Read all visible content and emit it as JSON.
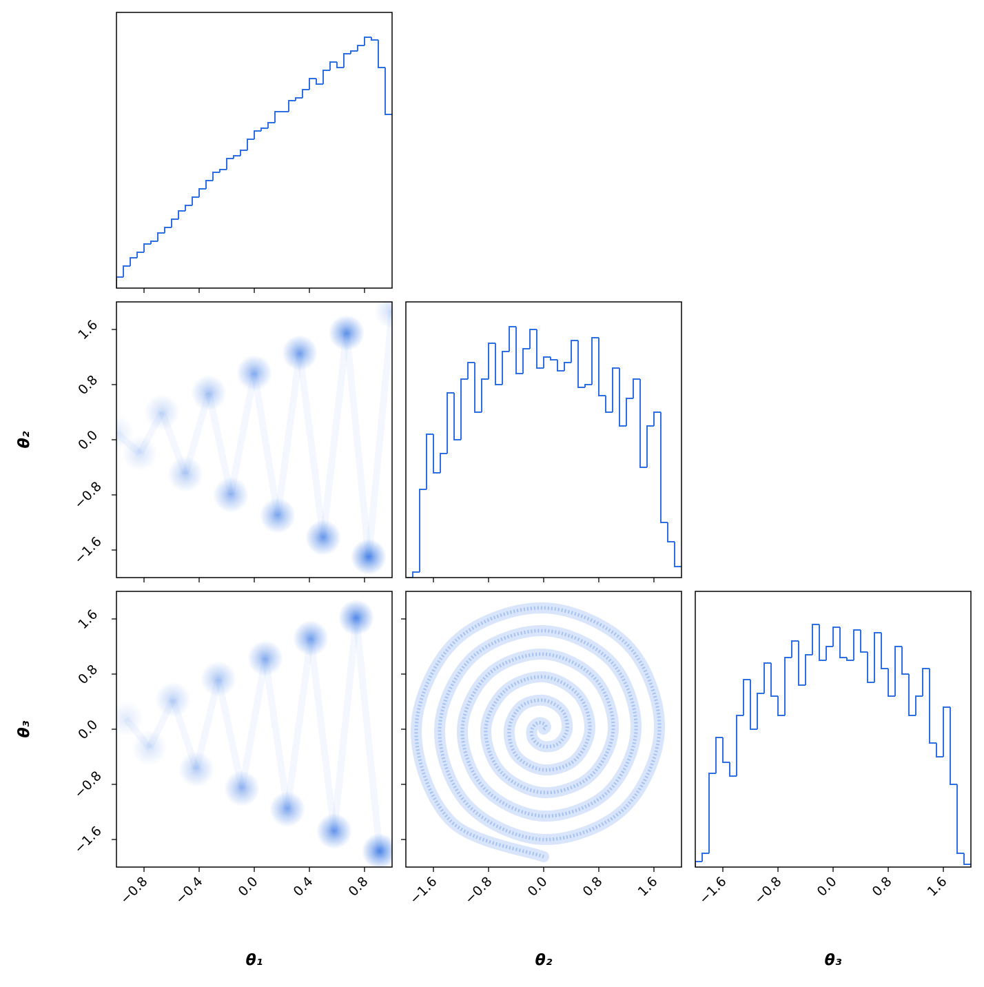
{
  "chart_data": [
    {
      "type": "histogram",
      "color": "#2d6fe3",
      "bins": [
        -1.0,
        -0.95,
        -0.9,
        -0.85,
        -0.8,
        -0.75,
        -0.7,
        -0.65,
        -0.6,
        -0.55,
        -0.5,
        -0.45,
        -0.4,
        -0.35,
        -0.3,
        -0.25,
        -0.2,
        -0.15,
        -0.1,
        -0.05,
        0.0,
        0.05,
        0.1,
        0.15,
        0.2,
        0.25,
        0.3,
        0.35,
        0.4,
        0.45,
        0.5,
        0.55,
        0.6,
        0.65,
        0.7,
        0.75,
        0.8,
        0.85,
        0.9,
        0.95,
        1.0
      ],
      "values": [
        0.04,
        0.08,
        0.11,
        0.13,
        0.16,
        0.17,
        0.2,
        0.22,
        0.25,
        0.28,
        0.3,
        0.33,
        0.36,
        0.39,
        0.42,
        0.43,
        0.47,
        0.48,
        0.5,
        0.54,
        0.57,
        0.58,
        0.6,
        0.64,
        0.64,
        0.68,
        0.69,
        0.72,
        0.76,
        0.74,
        0.79,
        0.82,
        0.8,
        0.85,
        0.86,
        0.88,
        0.91,
        0.9,
        0.8,
        0.63
      ],
      "xlim": [
        -1,
        1
      ],
      "xticks": [
        -0.8,
        -0.4,
        0,
        0.4,
        0.8
      ],
      "ylim": [
        0,
        1
      ]
    },
    {
      "type": "density",
      "color": "#2d6fe3",
      "x": [
        -1.0,
        -0.83,
        -0.67,
        -0.5,
        -0.33,
        -0.17,
        0.0,
        0.17,
        0.33,
        0.5,
        0.67,
        0.83,
        1.0
      ],
      "y": [
        0.1,
        -0.2,
        0.4,
        -0.5,
        0.68,
        -0.8,
        0.97,
        -1.1,
        1.26,
        -1.42,
        1.55,
        -1.7,
        1.87
      ],
      "values": [
        0.15,
        0.2,
        0.25,
        0.35,
        0.4,
        0.5,
        0.55,
        0.6,
        0.65,
        0.7,
        0.75,
        0.85,
        0.25
      ],
      "xlim": [
        -1,
        1
      ],
      "xticks": [
        -0.8,
        -0.4,
        0,
        0.4,
        0.8
      ],
      "ylim": [
        -2,
        2
      ],
      "yticks": [
        {
          "value": -1.6,
          "label": "−1.6"
        },
        {
          "value": -0.8,
          "label": "−0.8"
        },
        {
          "value": 0,
          "label": "0.0"
        },
        0.8,
        1.6
      ],
      "ylabel": "θ₂"
    },
    {
      "type": "histogram",
      "color": "#2d6fe3",
      "bins": [
        -2.0,
        -1.9,
        -1.8,
        -1.7,
        -1.6,
        -1.5,
        -1.4,
        -1.3,
        -1.2,
        -1.1,
        -1.0,
        -0.9,
        -0.8,
        -0.7,
        -0.6,
        -0.5,
        -0.4,
        -0.3,
        -0.2,
        -0.1,
        0.0,
        0.1,
        0.2,
        0.3,
        0.4,
        0.5,
        0.6,
        0.7,
        0.8,
        0.9,
        1.0,
        1.1,
        1.2,
        1.3,
        1.4,
        1.5,
        1.6,
        1.7,
        1.8,
        1.9,
        2.0
      ],
      "values": [
        0.0,
        0.02,
        0.32,
        0.52,
        0.38,
        0.45,
        0.67,
        0.5,
        0.72,
        0.78,
        0.6,
        0.72,
        0.85,
        0.7,
        0.82,
        0.91,
        0.74,
        0.83,
        0.9,
        0.76,
        0.8,
        0.79,
        0.75,
        0.78,
        0.86,
        0.69,
        0.7,
        0.87,
        0.66,
        0.6,
        0.76,
        0.55,
        0.65,
        0.72,
        0.4,
        0.55,
        0.6,
        0.2,
        0.13,
        0.04
      ],
      "xlim": [
        -2,
        2
      ],
      "xticks": [
        -1.6,
        -0.8,
        0,
        0.8,
        1.6
      ],
      "ylim": [
        0,
        1
      ]
    },
    {
      "type": "density",
      "color": "#2d6fe3",
      "x": [
        -0.93,
        -0.76,
        -0.59,
        -0.42,
        -0.26,
        -0.09,
        0.08,
        0.24,
        0.41,
        0.58,
        0.74,
        0.91
      ],
      "y": [
        0.15,
        -0.27,
        0.43,
        -0.58,
        0.73,
        -0.86,
        1.03,
        -1.16,
        1.32,
        -1.48,
        1.62,
        -1.77
      ],
      "values": [
        0.15,
        0.2,
        0.3,
        0.35,
        0.4,
        0.5,
        0.55,
        0.6,
        0.65,
        0.72,
        0.8,
        0.85
      ],
      "xlim": [
        -1,
        1
      ],
      "xticks": [
        {
          "value": -0.8,
          "label": "−0.8"
        },
        {
          "value": -0.4,
          "label": "−0.4"
        },
        {
          "value": 0,
          "label": "0.0"
        },
        0.4,
        0.8
      ],
      "ylim": [
        -2,
        2
      ],
      "yticks": [
        {
          "value": -1.6,
          "label": "−1.6"
        },
        {
          "value": -0.8,
          "label": "−0.8"
        },
        {
          "value": 0,
          "label": "0.0"
        },
        0.8,
        1.6
      ],
      "xlabel": "θ₁",
      "ylabel": "θ₃"
    },
    {
      "type": "curve",
      "color": "#2d6fe3",
      "x": [
        0,
        0.03,
        0,
        -0.09,
        -0.17,
        -0.15,
        0,
        0.21,
        0.34,
        0.27,
        0,
        -0.33,
        -0.5,
        -0.39,
        0,
        0.45,
        0.67,
        0.5,
        0,
        -0.56,
        -0.84,
        -0.62,
        0,
        0.68,
        1.01,
        0.74,
        0,
        -0.8,
        -1.18,
        -0.86,
        0,
        0.92,
        1.34,
        0.98,
        0,
        -1.04,
        -1.51,
        -1.1,
        0,
        1.16,
        1.68,
        1.22,
        0,
        -1.28,
        -1.85,
        -1.34,
        0
      ],
      "y": [
        0,
        0.03,
        0.08,
        0.09,
        0,
        -0.15,
        -0.25,
        -0.21,
        0,
        0.27,
        0.42,
        0.33,
        0,
        -0.39,
        -0.59,
        -0.45,
        0,
        0.5,
        0.76,
        0.56,
        0,
        -0.62,
        -0.92,
        -0.68,
        0,
        0.74,
        1.09,
        0.8,
        0,
        -0.86,
        -1.26,
        -0.92,
        0,
        0.98,
        1.43,
        1.04,
        0,
        -1.1,
        -1.6,
        -1.16,
        0,
        1.22,
        1.76,
        1.28,
        0,
        -1.34,
        -1.85
      ],
      "xlim": [
        -2,
        2
      ],
      "xticks": [
        {
          "value": -1.6,
          "label": "−1.6"
        },
        {
          "value": -0.8,
          "label": "−0.8"
        },
        {
          "value": 0,
          "label": "0.0"
        },
        0.8,
        1.6
      ],
      "ylim": [
        -2,
        2
      ],
      "yticks": [
        -1.6,
        -0.8,
        0,
        0.8,
        1.6
      ],
      "xlabel": "θ₂"
    },
    {
      "type": "histogram",
      "color": "#2d6fe3",
      "bins": [
        -2.0,
        -1.9,
        -1.8,
        -1.7,
        -1.6,
        -1.5,
        -1.4,
        -1.3,
        -1.2,
        -1.1,
        -1.0,
        -0.9,
        -0.8,
        -0.7,
        -0.6,
        -0.5,
        -0.4,
        -0.3,
        -0.2,
        -0.1,
        0.0,
        0.1,
        0.2,
        0.3,
        0.4,
        0.5,
        0.6,
        0.7,
        0.8,
        0.9,
        1.0,
        1.1,
        1.2,
        1.3,
        1.4,
        1.5,
        1.6,
        1.7,
        1.8,
        1.9,
        2.0
      ],
      "values": [
        0.02,
        0.05,
        0.34,
        0.47,
        0.38,
        0.33,
        0.55,
        0.68,
        0.5,
        0.63,
        0.74,
        0.62,
        0.55,
        0.76,
        0.82,
        0.66,
        0.77,
        0.88,
        0.75,
        0.8,
        0.87,
        0.76,
        0.75,
        0.86,
        0.78,
        0.67,
        0.85,
        0.72,
        0.62,
        0.8,
        0.7,
        0.55,
        0.62,
        0.72,
        0.45,
        0.4,
        0.58,
        0.3,
        0.05,
        0.01
      ],
      "xlim": [
        -2,
        2
      ],
      "xticks": [
        {
          "value": -1.6,
          "label": "−1.6"
        },
        {
          "value": -0.8,
          "label": "−0.8"
        },
        {
          "value": 0,
          "label": "0.0"
        },
        0.8,
        1.6
      ],
      "ylim": [
        0,
        1
      ],
      "xlabel": "θ₃"
    }
  ]
}
